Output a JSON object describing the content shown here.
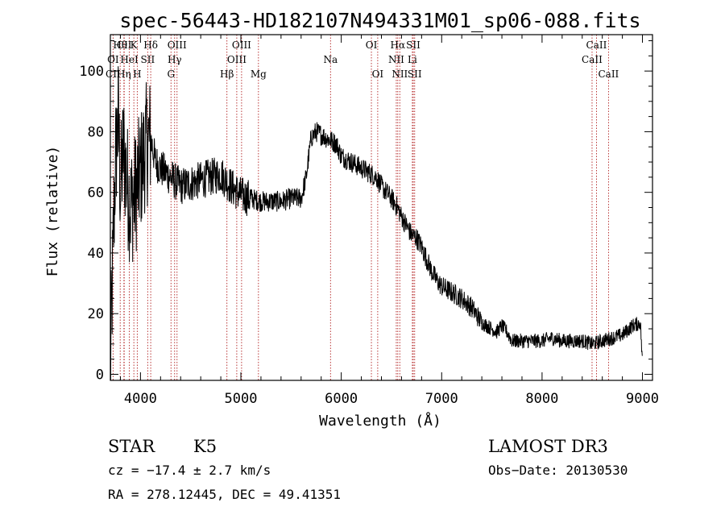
{
  "chart_data": {
    "type": "line",
    "title": "spec-56443-HD182107N494331M01_sp06-088.fits",
    "xlabel": "Wavelength (Å)",
    "ylabel": "Flux (relative)",
    "xlim": [
      3700,
      9100
    ],
    "ylim": [
      -2,
      112
    ],
    "xticks": [
      4000,
      5000,
      6000,
      7000,
      8000,
      9000
    ],
    "yticks": [
      0,
      20,
      40,
      60,
      80,
      100
    ],
    "series": [
      {
        "name": "flux",
        "anchors_x": [
          3700,
          3730,
          3750,
          3780,
          3800,
          3830,
          3860,
          3900,
          3950,
          3990,
          4050,
          4100,
          4150,
          4200,
          4300,
          4400,
          4500,
          4600,
          4700,
          4800,
          4850,
          4900,
          5000,
          5100,
          5200,
          5300,
          5400,
          5500,
          5600,
          5650,
          5700,
          5750,
          5800,
          5850,
          5900,
          5950,
          6000,
          6100,
          6200,
          6300,
          6350,
          6400,
          6450,
          6500,
          6560,
          6600,
          6650,
          6700,
          6750,
          6800,
          6850,
          6900,
          6950,
          7000,
          7100,
          7200,
          7300,
          7400,
          7500,
          7550,
          7600,
          7650,
          7700,
          7800,
          7900,
          8000,
          8100,
          8200,
          8300,
          8400,
          8500,
          8600,
          8700,
          8800,
          8900,
          8980,
          9000
        ],
        "anchors_y": [
          0,
          45,
          70,
          85,
          60,
          75,
          65,
          55,
          60,
          65,
          75,
          78,
          70,
          68,
          65,
          62,
          63,
          64,
          65,
          66,
          64,
          62,
          59,
          58,
          57,
          57,
          57,
          58,
          58,
          65,
          78,
          80,
          79,
          78,
          77,
          76,
          72,
          70,
          68,
          66,
          65,
          62,
          60,
          58,
          55,
          52,
          49,
          46,
          45,
          42,
          38,
          34,
          31,
          29,
          27,
          25,
          22,
          17,
          15,
          14,
          16,
          14,
          11,
          11,
          11,
          11,
          12,
          11,
          11,
          11,
          10,
          11,
          12,
          13,
          16,
          17,
          3
        ],
        "noise_amplitude": 3.5
      }
    ],
    "line_markers": [
      {
        "label": "Hθ",
        "x": 3798,
        "row": 0
      },
      {
        "label": "CII",
        "x": 3838,
        "row": 0
      },
      {
        "label": "K",
        "x": 3934,
        "row": 0
      },
      {
        "label": "Hδ",
        "x": 4102,
        "row": 0
      },
      {
        "label": "OIII",
        "x": 4364,
        "row": 0
      },
      {
        "label": "OIII",
        "x": 5007,
        "row": 0
      },
      {
        "label": "OI",
        "x": 6300,
        "row": 0
      },
      {
        "label": "Hα",
        "x": 6563,
        "row": 0
      },
      {
        "label": "SII",
        "x": 6717,
        "row": 0
      },
      {
        "label": "CaII",
        "x": 8542,
        "row": 0
      },
      {
        "label": "OI",
        "x": 3727,
        "row": 1
      },
      {
        "label": "HeI",
        "x": 3889,
        "row": 1
      },
      {
        "label": "SII",
        "x": 4072,
        "row": 1
      },
      {
        "label": "Hγ",
        "x": 4340,
        "row": 1
      },
      {
        "label": "OIII",
        "x": 4959,
        "row": 1
      },
      {
        "label": "Na",
        "x": 5893,
        "row": 1
      },
      {
        "label": "NII",
        "x": 6548,
        "row": 1
      },
      {
        "label": "Li",
        "x": 6708,
        "row": 1
      },
      {
        "label": "CaII",
        "x": 8498,
        "row": 1
      },
      {
        "label": "CII",
        "x": 3727,
        "row": 2
      },
      {
        "label": "Hη",
        "x": 3835,
        "row": 2
      },
      {
        "label": "H",
        "x": 3968,
        "row": 2
      },
      {
        "label": "G",
        "x": 4304,
        "row": 2
      },
      {
        "label": "Hβ",
        "x": 4861,
        "row": 2
      },
      {
        "label": "Mg",
        "x": 5175,
        "row": 2
      },
      {
        "label": "OI",
        "x": 6363,
        "row": 2
      },
      {
        "label": "NII",
        "x": 6583,
        "row": 2
      },
      {
        "label": "SII",
        "x": 6731,
        "row": 2
      },
      {
        "label": "CaII",
        "x": 8662,
        "row": 2
      }
    ]
  },
  "info": {
    "object_type": "STAR",
    "subclass": "K5",
    "survey": "LAMOST DR3",
    "cz": "cz = −17.4 ± 2.7 km/s",
    "obs_date": "Obs−Date: 20130530",
    "coords": "RA = 278.12445, DEC =  49.41351"
  },
  "colors": {
    "line_marker": "#b22222",
    "spectrum": "#000000"
  }
}
